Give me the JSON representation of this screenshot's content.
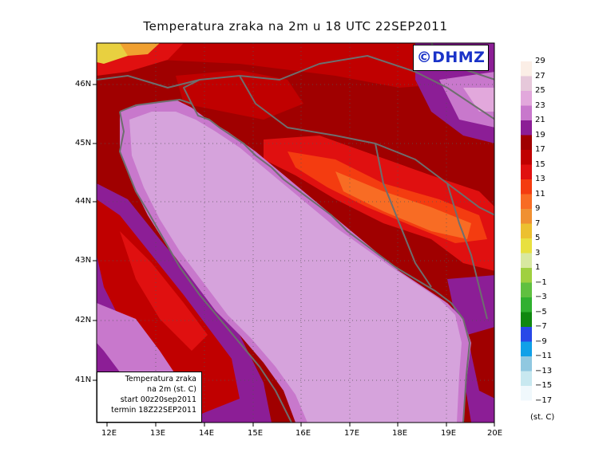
{
  "title": "Temperatura zraka na 2m u 18 UTC 22SEP2011",
  "logo": "©DHMZ",
  "info": {
    "line1": "Temperatura zraka",
    "line2": "na 2m (st. C)",
    "line3": "start 00z20sep2011",
    "line4": "termin 18Z22SEP2011"
  },
  "lon_labels": [
    "12E",
    "13E",
    "14E",
    "15E",
    "16E",
    "17E",
    "18E",
    "19E",
    "20E"
  ],
  "lat_labels": [
    "41N",
    "42N",
    "43N",
    "44N",
    "45N",
    "46N"
  ],
  "legend": {
    "levels": [
      "29",
      "27",
      "25",
      "23",
      "21",
      "19",
      "17",
      "15",
      "13",
      "11",
      "9",
      "7",
      "5",
      "3",
      "1",
      "−1",
      "−3",
      "−5",
      "−7",
      "−9",
      "−11",
      "−13",
      "−15",
      "−17"
    ],
    "colors": [
      "#fbeee6",
      "#e6c8da",
      "#e2a8dc",
      "#c878cc",
      "#8c1e96",
      "#a00000",
      "#c00000",
      "#e01010",
      "#f43c10",
      "#f86c24",
      "#f09032",
      "#ecc030",
      "#e8e040",
      "#d8e8a0",
      "#a0d040",
      "#60c040",
      "#30b030",
      "#108810",
      "#2848e8",
      "#10a0e8",
      "#90c8e0",
      "#c8e8f0",
      "#f0f8fc"
    ],
    "unit": "(st. C)"
  },
  "colors": {
    "sea": "#d6a3dc",
    "coast": "#e2a8dc",
    "hot": "#a00000",
    "border": "#6e6e6e"
  }
}
